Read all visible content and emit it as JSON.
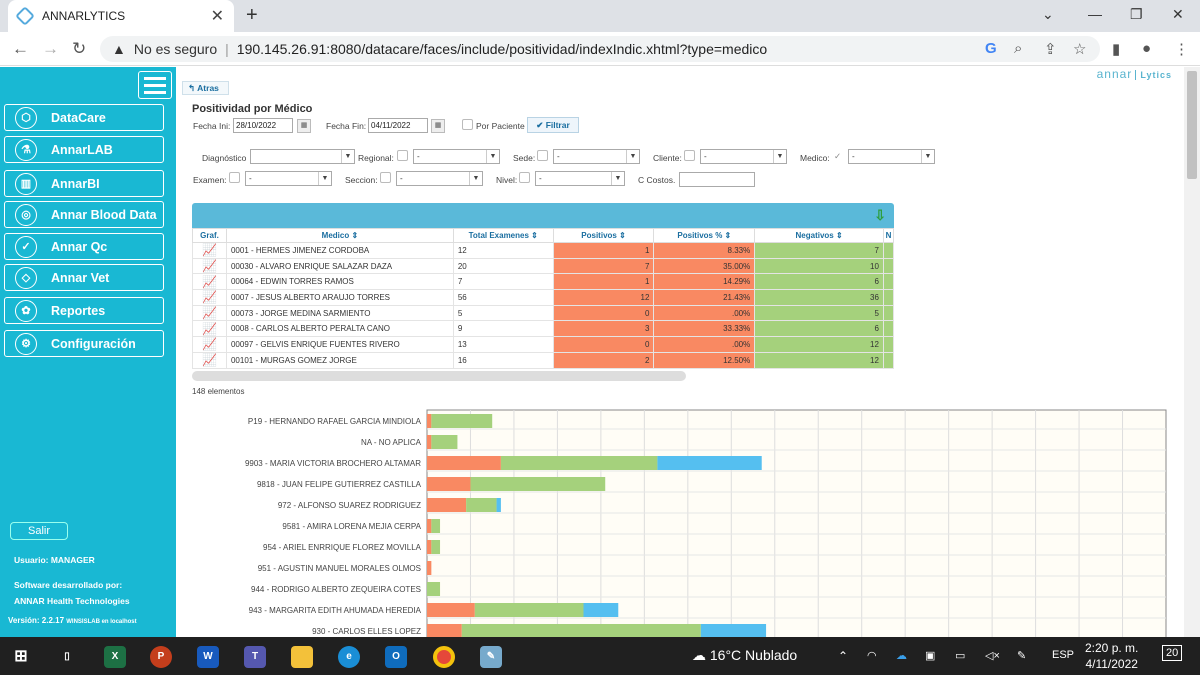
{
  "browser": {
    "tab_title": "ANNARLYTICS",
    "security_label": "No es seguro",
    "url": "190.145.26.91:8080/datacare/faces/include/positividad/indexIndic.xhtml?type=medico"
  },
  "sidebar": {
    "items": [
      {
        "label": "DataCare",
        "icon": "hexagon-icon"
      },
      {
        "label": "AnnarLAB",
        "icon": "lab-icon"
      },
      {
        "label": "AnnarBI",
        "icon": "bar-chart-icon"
      },
      {
        "label": "Annar Blood Data",
        "icon": "rings-icon"
      },
      {
        "label": "Annar Qc",
        "icon": "check-icon"
      },
      {
        "label": "Annar Vet",
        "icon": "vet-icon"
      },
      {
        "label": "Reportes",
        "icon": "report-icon"
      },
      {
        "label": "Configuración",
        "icon": "gear-icon"
      }
    ],
    "logout": "Salir",
    "user": "Usuario: MANAGER",
    "dev_label": "Software desarrollado por:",
    "company": "ANNAR Health Technologies",
    "version": "Versión: 2.2.17",
    "server": "WINSISLAB en localhost"
  },
  "page": {
    "back": "Atras",
    "logo_main": "annar",
    "logo_sub": "Lytics",
    "title": "Positividad por Médico",
    "filters": {
      "fecha_ini_label": "Fecha Ini:",
      "fecha_ini": "28/10/2022",
      "fecha_fin_label": "Fecha Fin:",
      "fecha_fin": "04/11/2022",
      "por_paciente": "Por Paciente",
      "filtrar": "Filtrar",
      "diagnostico": "Diagnóstico",
      "regional": "Regional:",
      "sede": "Sede:",
      "cliente": "Cliente:",
      "medico": "Medico:",
      "examen": "Examen:",
      "seccion": "Seccion:",
      "nivel": "Nivel:",
      "c_costos": "C Costos.",
      "dash": "-"
    },
    "table": {
      "headers": [
        "Graf.",
        "Medico",
        "Total Examenes",
        "Positivos",
        "Positivos %",
        "Negativos",
        "N"
      ],
      "rows": [
        [
          "0001 - HERMES JIMENEZ CORDOBA",
          "12",
          "1",
          "8.33%",
          "7"
        ],
        [
          "00030 - ALVARO ENRIQUE SALAZAR DAZA",
          "20",
          "7",
          "35.00%",
          "10"
        ],
        [
          "00064 - EDWIN TORRES RAMOS",
          "7",
          "1",
          "14.29%",
          "6"
        ],
        [
          "0007 - JESUS ALBERTO ARAUJO TORRES",
          "56",
          "12",
          "21.43%",
          "36"
        ],
        [
          "00073 - JORGE MEDINA SARMIENTO",
          "5",
          "0",
          ".00%",
          "5"
        ],
        [
          "0008 - CARLOS ALBERTO PERALTA CANO",
          "9",
          "3",
          "33.33%",
          "6"
        ],
        [
          "00097 - GELVIS ENRIQUE FUENTES RIVERO",
          "13",
          "0",
          ".00%",
          "12"
        ],
        [
          "00101 - MURGAS GOMEZ JORGE",
          "16",
          "2",
          "12.50%",
          "12"
        ]
      ],
      "count": "148 elementos"
    }
  },
  "chart_data": {
    "type": "bar",
    "orientation": "horizontal-stacked",
    "categories": [
      "P19 - HERNANDO RAFAEL GARCIA MINDIOLA",
      "NA - NO APLICA",
      "9903 - MARIA VICTORIA BROCHERO ALTAMAR",
      "9818 - JUAN FELIPE GUTIERREZ CASTILLA",
      "972 - ALFONSO  SUAREZ RODRIGUEZ",
      "9581 - AMIRA LORENA MEJIA CERPA",
      "954 - ARIEL ENRRIQUE FLOREZ MOVILLA",
      "951 - AGUSTIN MANUEL MORALES OLMOS",
      "944 - RODRIGO ALBERTO ZEQUEIRA COTES",
      "943 - MARGARITA EDITH AHUMADA HEREDIA",
      "930 - CARLOS  ELLES LOPEZ"
    ],
    "series": [
      {
        "values": [
          1,
          1,
          17,
          10,
          9,
          1,
          1,
          1,
          0,
          11,
          8
        ],
        "color": "#f98962"
      },
      {
        "values": [
          14,
          6,
          36,
          31,
          7,
          2,
          2,
          0,
          3,
          25,
          55
        ],
        "color": "#a5d17c"
      },
      {
        "values": [
          0,
          0,
          24,
          0,
          1,
          0,
          0,
          0,
          0,
          8,
          15
        ],
        "color": "#55bff0"
      }
    ],
    "xlim": [
      0,
      170
    ],
    "grid": true
  },
  "taskbar": {
    "weather": "16°C  Nublado",
    "lang": "ESP",
    "time": "2:20 p. m.",
    "date": "4/11/2022",
    "notif": "20"
  }
}
